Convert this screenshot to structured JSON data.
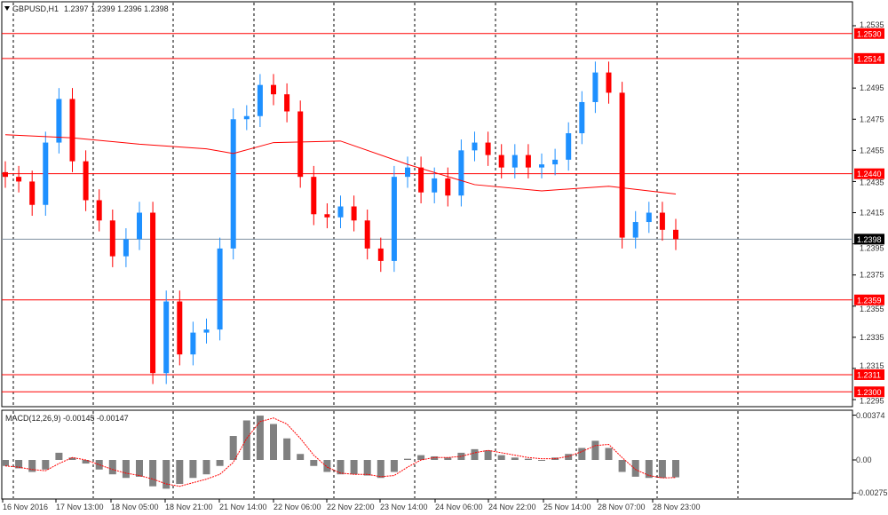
{
  "header": {
    "symbol": "GBPUSD,H1",
    "ohlc": "1.2397 1.2399 1.2396 1.2398"
  },
  "macd_label": "MACD(12,26,9) -0.00145 -0.00147",
  "colors": {
    "bull": "#1e90ff",
    "bear": "#ff0000",
    "level": "#ff0000",
    "ma": "#ff0000",
    "macd_hist": "#808080",
    "signal": "#ff0000",
    "current": "#000000"
  },
  "chart_data": [
    {
      "type": "candlestick",
      "ylim": [
        1.229,
        1.254
      ],
      "y_ticks": [
        "1.2535",
        "1.2495",
        "1.2475",
        "1.2455",
        "1.2435",
        "1.2415",
        "1.2395",
        "1.2375",
        "1.2355",
        "1.2335",
        "1.2315",
        "1.2295"
      ],
      "x_ticks": [
        "16 Nov 2016",
        "17 Nov 13:00",
        "18 Nov 05:00",
        "18 Nov 21:00",
        "21 Nov 14:00",
        "22 Nov 06:00",
        "22 Nov 22:00",
        "23 Nov 14:00",
        "24 Nov 06:00",
        "24 Nov 22:00",
        "25 Nov 14:00",
        "28 Nov 07:00",
        "28 Nov 23:00"
      ],
      "closes": [
        1.2438,
        1.2435,
        1.242,
        1.246,
        1.2488,
        1.2448,
        1.2423,
        1.241,
        1.2387,
        1.2398,
        1.2415,
        1.2312,
        1.2358,
        1.2324,
        1.2338,
        1.234,
        1.2392,
        1.2475,
        1.2477,
        1.2497,
        1.2491,
        1.248,
        1.2438,
        1.2414,
        1.2412,
        1.2419,
        1.241,
        1.2392,
        1.2384,
        1.2438,
        1.2444,
        1.2428,
        1.2437,
        1.2426,
        1.2455,
        1.246,
        1.2452,
        1.2444,
        1.2452,
        1.2444,
        1.2446,
        1.2449,
        1.2466,
        1.2486,
        1.2505,
        1.2492,
        1.2399,
        1.2409,
        1.2415,
        1.2404,
        1.2398
      ],
      "moving_average": {
        "x_index": [
          0,
          5,
          10,
          15,
          17,
          20,
          25,
          30,
          35,
          40,
          45,
          50
        ],
        "values": [
          1.2465,
          1.2463,
          1.2459,
          1.2456,
          1.2453,
          1.246,
          1.2461,
          1.2446,
          1.2433,
          1.2429,
          1.2432,
          1.2427
        ]
      },
      "levels": [
        "1.2530",
        "1.2514",
        "1.2440",
        "1.2359",
        "1.2311",
        "1.2300"
      ],
      "current_price": "1.2398"
    },
    {
      "type": "bar+line",
      "title": "MACD(12,26,9)",
      "ylim": [
        -0.00275,
        0.00374
      ],
      "y_ticks": [
        "0.00374",
        "0.00",
        "-0.00275"
      ],
      "histogram": [
        -0.0005,
        -0.0007,
        -0.001,
        -0.0008,
        0.0006,
        0.0002,
        -0.0003,
        -0.0008,
        -0.0012,
        -0.0015,
        -0.0014,
        -0.0022,
        -0.0024,
        -0.002,
        -0.0015,
        -0.0012,
        -0.0005,
        0.002,
        0.0033,
        0.0037,
        0.003,
        0.0018,
        0.0005,
        -0.0005,
        -0.001,
        -0.0012,
        -0.0012,
        -0.0013,
        -0.0015,
        -0.001,
        0.0001,
        0.0004,
        0.0003,
        0.0002,
        0.0006,
        0.0009,
        0.0008,
        0.0004,
        0.0002,
        0.0001,
        0.0,
        0.0002,
        0.0005,
        0.001,
        0.0016,
        0.001,
        -0.001,
        -0.0014,
        -0.0015,
        -0.0015,
        -0.00145
      ],
      "signal": [
        -0.0005,
        -0.0006,
        -0.0008,
        -0.0009,
        -0.0003,
        0.0002,
        0.0,
        -0.0004,
        -0.0008,
        -0.0011,
        -0.0013,
        -0.0016,
        -0.002,
        -0.0022,
        -0.0019,
        -0.0016,
        -0.0012,
        -0.0002,
        0.0018,
        0.0032,
        0.0035,
        0.003,
        0.0018,
        0.0004,
        -0.0006,
        -0.0011,
        -0.0012,
        -0.0012,
        -0.0014,
        -0.0013,
        -0.0006,
        0.0,
        0.0002,
        0.0002,
        0.0003,
        0.0006,
        0.0008,
        0.0006,
        0.0004,
        0.0002,
        0.0001,
        0.0001,
        0.0003,
        0.0007,
        0.0012,
        0.0013,
        0.0002,
        -0.0008,
        -0.0013,
        -0.0015,
        -0.00147
      ]
    }
  ]
}
